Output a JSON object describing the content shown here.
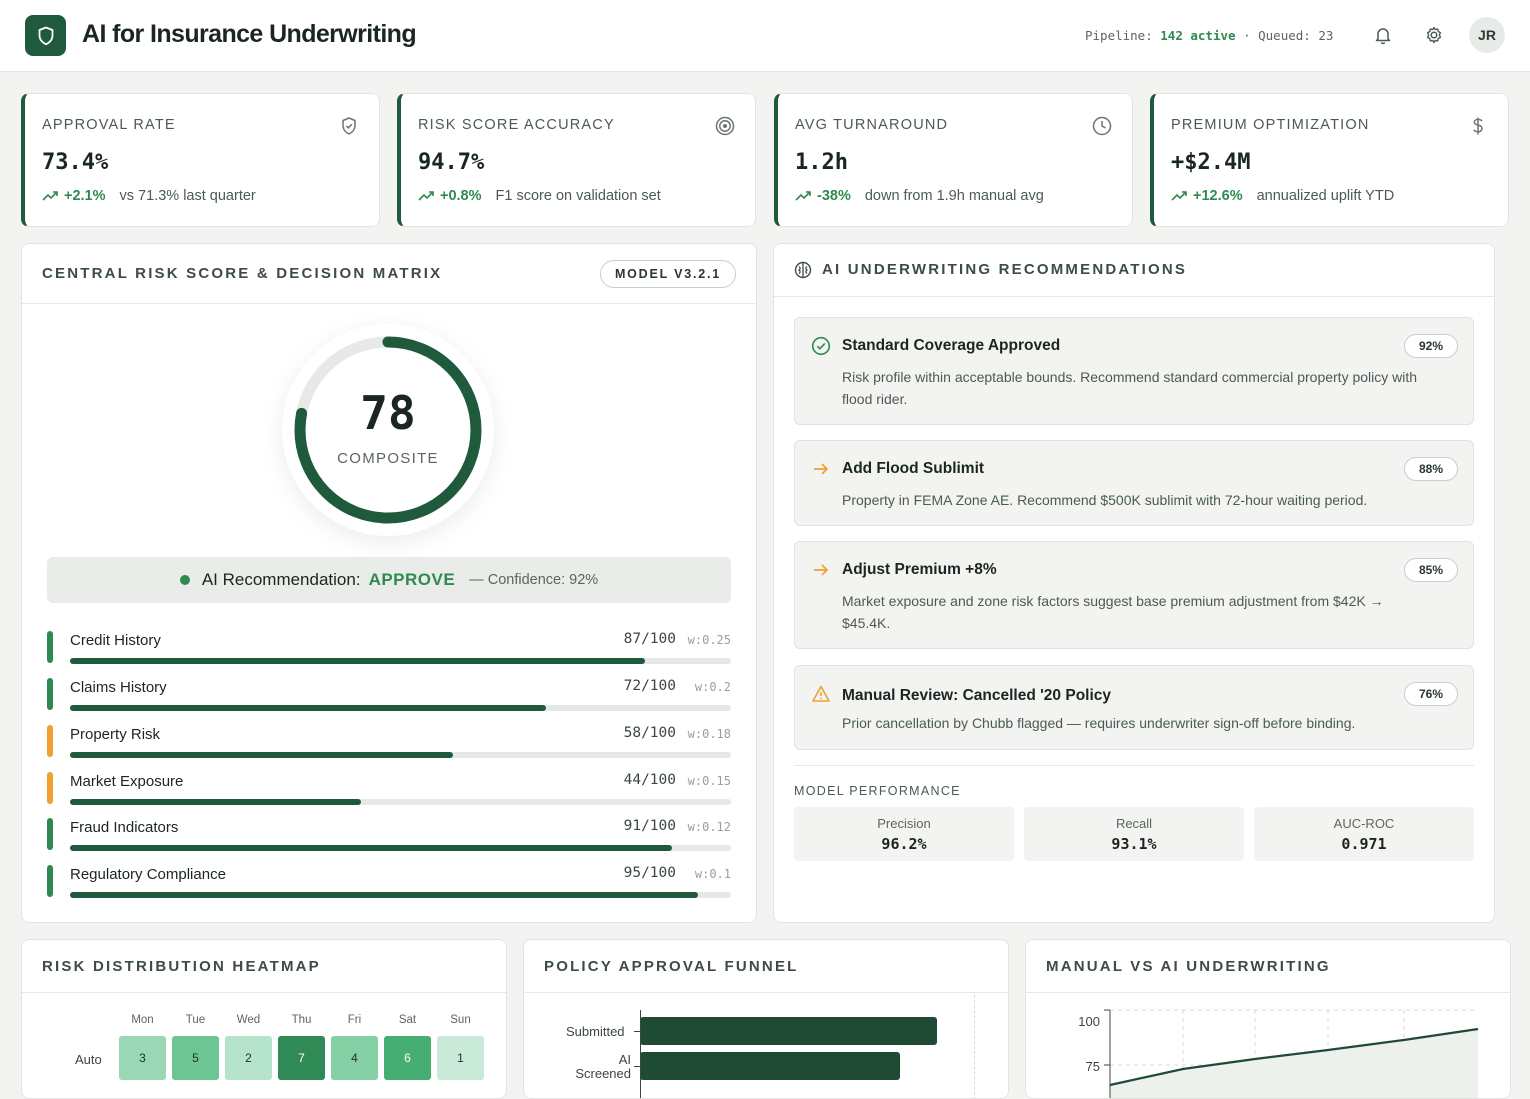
{
  "header": {
    "app_title": "AI for Insurance Underwriting",
    "pipeline_label": "Pipeline:",
    "pipeline_active": "142 active",
    "pipeline_sep": "·",
    "queued": "Queued: 23",
    "avatar_initials": "JR"
  },
  "kpis": [
    {
      "label": "APPROVAL RATE",
      "value": "73.4%",
      "delta": "+2.1%",
      "note": "vs 71.3% last quarter",
      "icon": "shield-icon"
    },
    {
      "label": "RISK SCORE ACCURACY",
      "value": "94.7%",
      "delta": "+0.8%",
      "note": "F1 score on validation set",
      "icon": "target-icon"
    },
    {
      "label": "AVG TURNAROUND",
      "value": "1.2h",
      "delta": "-38%",
      "note": "down from 1.9h manual avg",
      "icon": "clock-icon"
    },
    {
      "label": "PREMIUM OPTIMIZATION",
      "value": "+$2.4M",
      "delta": "+12.6%",
      "note": "annualized uplift YTD",
      "icon": "dollar-icon"
    }
  ],
  "risk_panel": {
    "title": "CENTRAL RISK SCORE & DECISION MATRIX",
    "model_badge": "MODEL V3.2.1",
    "score": "78",
    "score_fraction": 0.78,
    "score_label": "COMPOSITE",
    "recommendation_prefix": "AI Recommendation:",
    "recommendation": "APPROVE",
    "confidence": "— Confidence: 92%",
    "factors": [
      {
        "name": "Credit History",
        "score": "87/100",
        "weight": "w:0.25",
        "fraction": 0.87,
        "color": "#2f8a4f"
      },
      {
        "name": "Claims History",
        "score": "72/100",
        "weight": "w:0.2",
        "fraction": 0.72,
        "color": "#2f8a4f"
      },
      {
        "name": "Property Risk",
        "score": "58/100",
        "weight": "w:0.18",
        "fraction": 0.58,
        "color": "#f0a030"
      },
      {
        "name": "Market Exposure",
        "score": "44/100",
        "weight": "w:0.15",
        "fraction": 0.44,
        "color": "#f0a030"
      },
      {
        "name": "Fraud Indicators",
        "score": "91/100",
        "weight": "w:0.12",
        "fraction": 0.91,
        "color": "#2f8a4f"
      },
      {
        "name": "Regulatory Compliance",
        "score": "95/100",
        "weight": "w:0.1",
        "fraction": 0.95,
        "color": "#2f8a4f"
      }
    ]
  },
  "recommendations": {
    "title": "AI UNDERWRITING RECOMMENDATIONS",
    "items": [
      {
        "title": "Standard Coverage Approved",
        "pct": "92%",
        "desc": "Risk profile within acceptable bounds. Recommend standard commercial property policy with flood rider.",
        "icon": "check-circle-icon"
      },
      {
        "title": "Add Flood Sublimit",
        "pct": "88%",
        "desc": "Property in FEMA Zone AE. Recommend $500K sublimit with 72-hour waiting period.",
        "icon": "arrow-right-icon"
      },
      {
        "title": "Adjust Premium +8%",
        "pct": "85%",
        "desc": "Market exposure and zone risk factors suggest base premium adjustment from $42K → $45.4K.",
        "icon": "arrow-right-icon"
      },
      {
        "title": "Manual Review: Cancelled '20 Policy",
        "pct": "76%",
        "desc": "Prior cancellation by Chubb flagged — requires underwriter sign-off before binding.",
        "icon": "warning-icon"
      }
    ],
    "performance_label": "MODEL PERFORMANCE",
    "metrics": [
      {
        "name": "Precision",
        "value": "96.2%"
      },
      {
        "name": "Recall",
        "value": "93.1%"
      },
      {
        "name": "AUC-ROC",
        "value": "0.971"
      }
    ]
  },
  "heatmap": {
    "title": "RISK DISTRIBUTION HEATMAP",
    "days": [
      "Mon",
      "Tue",
      "Wed",
      "Thu",
      "Fri",
      "Sat",
      "Sun"
    ],
    "row_label": "Auto",
    "values": [
      "3",
      "5",
      "2",
      "7",
      "4",
      "6",
      "1"
    ]
  },
  "funnel": {
    "title": "POLICY APPROVAL FUNNEL",
    "stages": [
      "Submitted",
      "AI Screened"
    ]
  },
  "comparison": {
    "title": "MANUAL VS AI UNDERWRITING",
    "ticks": [
      "100",
      "75"
    ]
  },
  "colors": {
    "brand": "#1f5a3c",
    "accent": "#2f8a4f",
    "warning": "#f0a030"
  }
}
